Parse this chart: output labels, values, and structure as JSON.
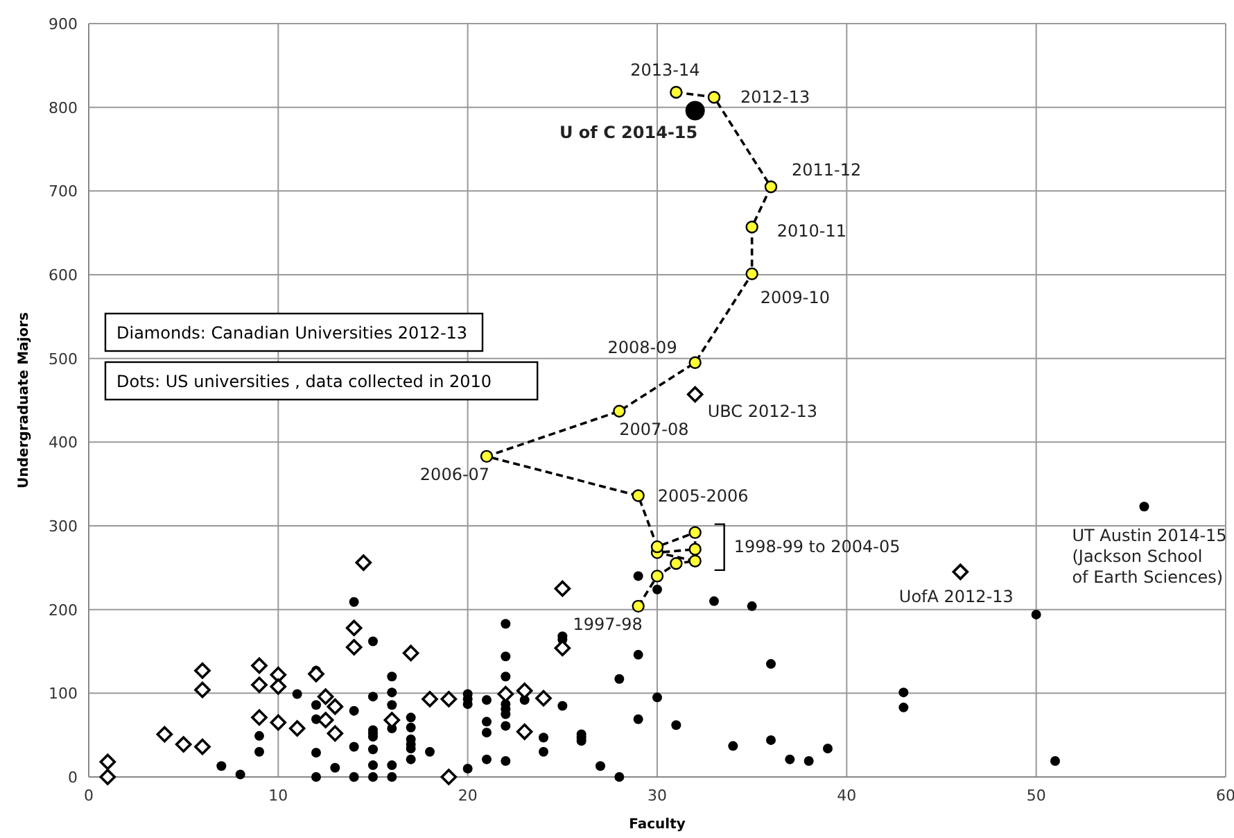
{
  "chart_data": {
    "type": "scatter",
    "xlabel": "Faculty",
    "ylabel": "Undergraduate Majors",
    "xlim": [
      0,
      60
    ],
    "ylim": [
      0,
      900
    ],
    "xticks": [
      0,
      10,
      20,
      30,
      40,
      50,
      60
    ],
    "yticks": [
      0,
      100,
      200,
      300,
      400,
      500,
      600,
      700,
      800,
      900
    ],
    "grid": true,
    "series": [
      {
        "marker": "circle",
        "color": "#000000",
        "x": [
          7,
          8,
          9,
          9,
          11,
          12,
          12,
          12,
          12,
          12,
          13,
          14,
          14,
          14,
          14,
          15,
          15,
          15,
          15,
          15,
          15,
          15,
          15,
          16,
          16,
          16,
          16,
          16,
          16,
          17,
          17,
          17,
          17,
          17,
          17,
          18,
          20,
          20,
          20,
          20,
          21,
          21,
          21,
          21,
          22,
          22,
          22,
          22,
          22,
          22,
          22,
          22,
          23,
          24,
          24,
          25,
          25,
          25,
          26,
          26,
          26,
          27,
          28,
          28,
          29,
          29,
          29,
          30,
          30,
          31,
          33,
          34,
          35,
          36,
          36,
          37,
          38,
          39,
          43,
          43,
          50,
          51,
          55.7
        ],
        "values": [
          13,
          3,
          49,
          30,
          99,
          127,
          86,
          69,
          29,
          0,
          11,
          209,
          79,
          36,
          0,
          162,
          96,
          56,
          52,
          48,
          33,
          14,
          0,
          120,
          101,
          86,
          58,
          14,
          0,
          71,
          59,
          45,
          39,
          34,
          21,
          30,
          99,
          93,
          87,
          10,
          92,
          66,
          53,
          21,
          183,
          144,
          120,
          87,
          81,
          75,
          61,
          19,
          92,
          47,
          30,
          168,
          164,
          85,
          51,
          47,
          43,
          13,
          117,
          0,
          240,
          146,
          69,
          224,
          95,
          62,
          210,
          37,
          204,
          135,
          44,
          21,
          19,
          34,
          101,
          83,
          194,
          19,
          323
        ]
      },
      {
        "marker": "diamond",
        "color": "#000000",
        "x": [
          1,
          1,
          4,
          5,
          6,
          6,
          6,
          9,
          9,
          9,
          10,
          10,
          10,
          11,
          12,
          12.5,
          12.5,
          13,
          13,
          14,
          14,
          14.5,
          16,
          17,
          18,
          19,
          19,
          22,
          23,
          23,
          24,
          25,
          25,
          32,
          46
        ],
        "values": [
          18,
          0,
          51,
          39,
          36,
          104,
          127,
          133,
          110,
          71,
          122,
          108,
          65,
          58,
          123,
          96,
          68,
          84,
          52,
          178,
          155,
          256,
          68,
          148,
          93,
          93,
          0,
          99,
          103,
          54,
          94,
          154,
          225,
          457,
          245
        ]
      },
      {
        "type": "line",
        "marker": "circle",
        "line_style": "dashed",
        "color": "#ffff33",
        "x": [
          29,
          30,
          31,
          32,
          30,
          32,
          32,
          30,
          29,
          21,
          28,
          32,
          35,
          35,
          36,
          33,
          31
        ],
        "values": [
          204,
          240,
          255,
          258,
          268,
          272,
          292,
          275,
          336,
          383,
          437,
          495,
          601,
          657,
          705,
          812,
          818
        ]
      },
      {
        "marker": "circle",
        "color": "#000000",
        "x": [
          32
        ],
        "values": [
          796
        ]
      }
    ],
    "annotations": [
      {
        "text": "2013-14",
        "x": 31,
        "y": 818
      },
      {
        "text": "2012-13",
        "x": 33,
        "y": 812
      },
      {
        "text": "U of C 2014-15",
        "x": 32,
        "y": 796
      },
      {
        "text": "2011-12",
        "x": 36,
        "y": 705
      },
      {
        "text": "2010-11",
        "x": 35,
        "y": 657
      },
      {
        "text": "2009-10",
        "x": 35,
        "y": 601
      },
      {
        "text": "2008-09",
        "x": 32,
        "y": 495
      },
      {
        "text": "2007-08",
        "x": 28,
        "y": 437
      },
      {
        "text": "2006-07",
        "x": 21,
        "y": 383
      },
      {
        "text": "2005-2006",
        "x": 29,
        "y": 336
      },
      {
        "text": "1998-99 to 2004-05",
        "x": 32,
        "y": 275
      },
      {
        "text": "1997-98",
        "x": 29,
        "y": 204
      },
      {
        "text": "UBC 2012-13",
        "x": 32,
        "y": 457
      },
      {
        "text": "UofA 2012-13",
        "x": 46,
        "y": 245
      },
      {
        "text": "UT Austin 2014-15\n(Jackson  School\nof Earth Sciences)",
        "x": 55.7,
        "y": 323
      },
      "Diamonds: Canadian Universities  2012-13",
      "Dots: US universities , data collected in 2010"
    ]
  }
}
